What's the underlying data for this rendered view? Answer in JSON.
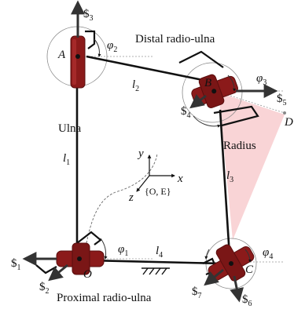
{
  "labels": {
    "distal": "Distal radio-ulna",
    "proximal": "Proximal radio-ulna",
    "ulna": "Ulna",
    "radius": "Radius"
  },
  "points": {
    "A": "A",
    "B": "B",
    "C": "C",
    "D": "D",
    "O": "O"
  },
  "links": {
    "l": "l",
    "l1": "1",
    "l2": "2",
    "l3": "3",
    "l4": "4"
  },
  "angles": {
    "phi": "φ",
    "p1": "1",
    "p2": "2",
    "p3": "3",
    "p4": "4"
  },
  "screws": {
    "sym": "$",
    "s1": "1",
    "s2": "2",
    "s3": "3",
    "s4": "4",
    "s5": "5",
    "s6": "6",
    "s7": "7"
  },
  "frame": {
    "x": "x",
    "y": "y",
    "z": "z",
    "name": "{O, E}"
  },
  "colors": {
    "joint": "#8b1a1a",
    "joint_dark": "#5a0e0e",
    "radius_fill": "#f7c9cc",
    "link": "#111111"
  }
}
